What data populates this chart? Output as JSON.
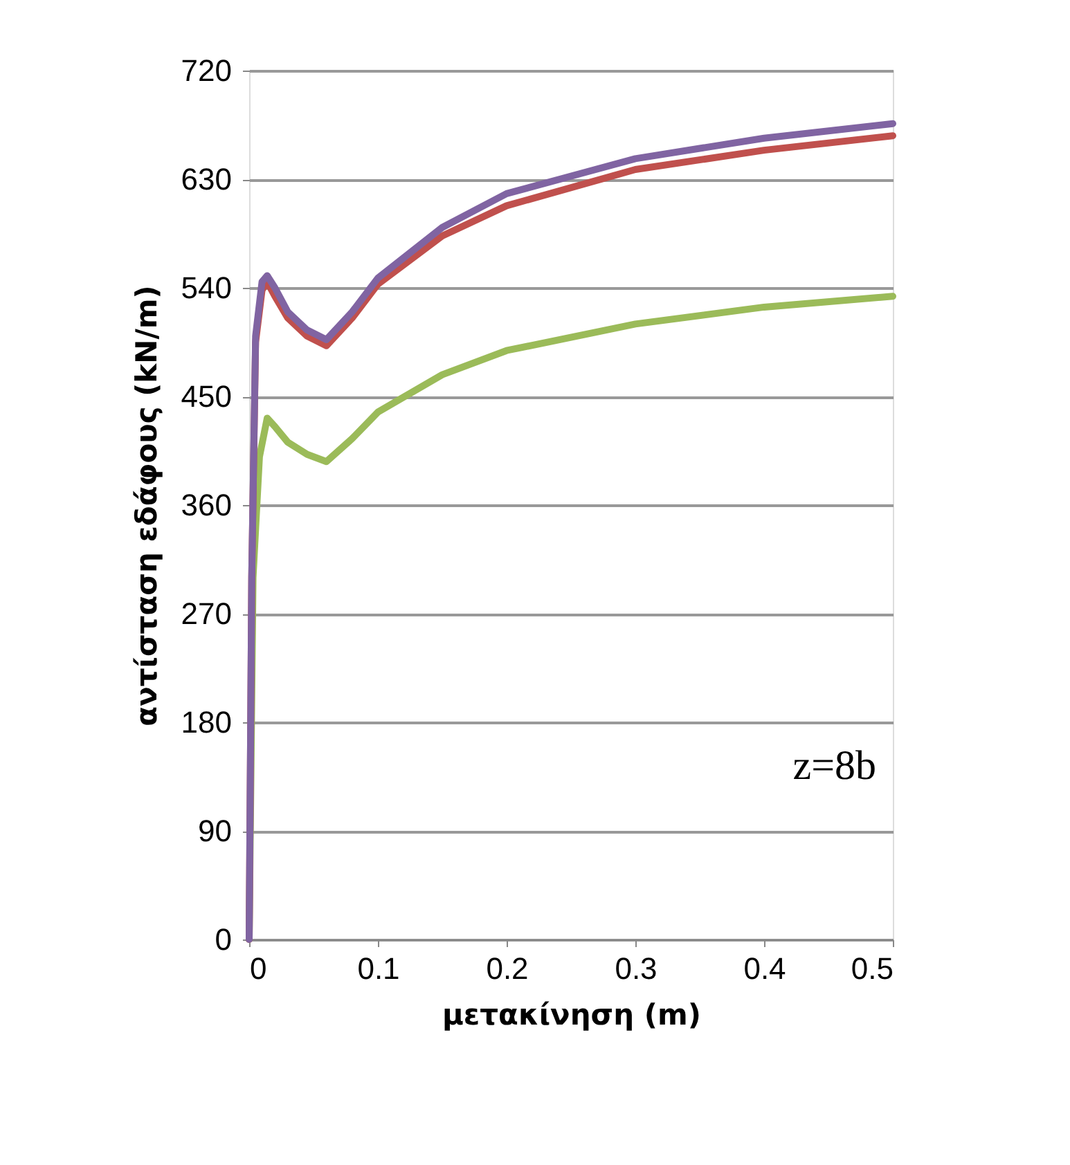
{
  "chart_data": {
    "type": "line",
    "xlabel": "μετακίνηση (m)",
    "ylabel": "αντίσταση εδάφους (kN/m)",
    "xlim": [
      0,
      0.5
    ],
    "xticks": [
      0,
      0.1,
      0.2,
      0.3,
      0.4,
      0.5
    ],
    "ylim": [
      0,
      720
    ],
    "yticks": [
      0,
      90,
      180,
      270,
      360,
      450,
      540,
      630,
      720
    ],
    "grid": "y",
    "marker": "none",
    "line_style": "solid",
    "annotations": [
      "z=8b"
    ],
    "series": [
      {
        "color": "#9bbb59",
        "x": [
          0,
          0.003,
          0.008,
          0.014,
          0.02,
          0.03,
          0.045,
          0.06,
          0.08,
          0.1,
          0.15,
          0.2,
          0.3,
          0.4,
          0.5
        ],
        "values": [
          0,
          300,
          400,
          432,
          425,
          412,
          402,
          396,
          415,
          437,
          468,
          488,
          510,
          524,
          533
        ]
      },
      {
        "color": "#c0504d",
        "x": [
          0,
          0.002,
          0.005,
          0.01,
          0.014,
          0.02,
          0.03,
          0.045,
          0.06,
          0.08,
          0.1,
          0.15,
          0.2,
          0.3,
          0.4,
          0.5
        ],
        "values": [
          0,
          300,
          495,
          538,
          545,
          533,
          515,
          500,
          492,
          515,
          543,
          583,
          608,
          638,
          654,
          666
        ]
      },
      {
        "color": "#8064a2",
        "x": [
          0,
          0.002,
          0.005,
          0.01,
          0.014,
          0.02,
          0.03,
          0.045,
          0.06,
          0.08,
          0.1,
          0.15,
          0.2,
          0.3,
          0.4,
          0.5
        ],
        "values": [
          0,
          300,
          500,
          545,
          550,
          540,
          520,
          505,
          497,
          520,
          548,
          590,
          618,
          647,
          664,
          676
        ]
      }
    ]
  }
}
